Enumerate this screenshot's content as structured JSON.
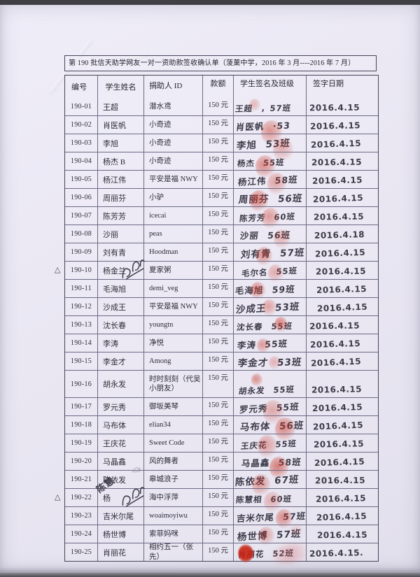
{
  "document": {
    "title": "第 190 批信天助学网友一对一资助款签收确认单（蔆菓中学，2016 年 3 月----2016 年 7 月）",
    "columns": [
      "编号",
      "学生姓名",
      "捐助人 ID",
      "款额",
      "学生签名及班级",
      "签字日期"
    ],
    "margin_symbol": "△",
    "note_text": "陈慧",
    "colors": {
      "paper": "#eae7f3",
      "ink": "#3d3b49",
      "fingerprint_red": "#cb3929",
      "printed": "#2c2c38"
    },
    "rows": [
      {
        "id": "190-01",
        "name": "王超",
        "donor": "潜水鸢",
        "amount": "150 元",
        "sign": "王超 ，57班",
        "date": "2016.4.15"
      },
      {
        "id": "190-02",
        "name": "肖医帆",
        "donor": "小奇迹",
        "amount": "150 元",
        "sign": "肖医帆 ·53",
        "date": "2016.4.15"
      },
      {
        "id": "190-03",
        "name": "李旭",
        "donor": "小奇迹",
        "amount": "150 元",
        "sign": "李旭 53班",
        "date": "2016.4.15"
      },
      {
        "id": "190-04",
        "name": "杨杰 B",
        "donor": "小奇迹",
        "amount": "150 元",
        "sign": "杨杰 55班",
        "date": "2016.4.15"
      },
      {
        "id": "190-05",
        "name": "杨江伟",
        "donor": "平安是福 NWY",
        "amount": "150 元",
        "sign": "杨江伟 58班",
        "date": "2016.4.15"
      },
      {
        "id": "190-06",
        "name": "周丽芬",
        "donor": "小驴",
        "amount": "150 元",
        "sign": "周丽芬 56班",
        "date": "2016.4.15"
      },
      {
        "id": "190-07",
        "name": "陈芳芳",
        "donor": "icecai",
        "amount": "150 元",
        "sign": "陈芳芳 60班",
        "date": "2016.4.15"
      },
      {
        "id": "190-08",
        "name": "沙丽",
        "donor": "peas",
        "amount": "150 元",
        "sign": "沙丽 56班",
        "date": "2016.4.18"
      },
      {
        "id": "190-09",
        "name": "刘有青",
        "donor": "Hoodman",
        "amount": "150 元",
        "sign": "刘有青 57班",
        "date": "2016.4.15"
      },
      {
        "id": "190-10",
        "name": "杨金兰",
        "donor": "夏家粥",
        "amount": "150 元",
        "sign": "毛尔名 55班",
        "date": "2016.4.15",
        "triangle": true,
        "scribble": true
      },
      {
        "id": "190-11",
        "name": "毛海旭",
        "donor": "demi_veg",
        "amount": "150 元",
        "sign": "毛海旭 59班",
        "date": "2016.4.15"
      },
      {
        "id": "190-12",
        "name": "沙成王",
        "donor": "平安是福 NWY",
        "amount": "150 元",
        "sign": "沙成王 53班",
        "date": "2016.4.15"
      },
      {
        "id": "190-13",
        "name": "沈长春",
        "donor": "youngtn",
        "amount": "150 元",
        "sign": "沈长春 55班",
        "date": "2016.4.15"
      },
      {
        "id": "190-14",
        "name": "李涛",
        "donor": "净悦",
        "amount": "150 元",
        "sign": "李涛 55班",
        "date": "2016.4.15"
      },
      {
        "id": "190-15",
        "name": "李金才",
        "donor": "Among",
        "amount": "150 元",
        "sign": "李金才 53班",
        "date": "2016.4.15"
      },
      {
        "id": "190-16",
        "name": "胡永发",
        "donor": "时时刻刻（代吴小朋友）",
        "amount": "150 元",
        "sign": "胡永发 55班",
        "date": "2016.4.15",
        "tall": true
      },
      {
        "id": "190-17",
        "name": "罗元秀",
        "donor": "御坂美琴",
        "amount": "150 元",
        "sign": "罗元秀 55班",
        "date": "2016.4.15"
      },
      {
        "id": "190-18",
        "name": "马布体",
        "donor": "elian34",
        "amount": "150 元",
        "sign": "马布体 56班",
        "date": "2016.4.15"
      },
      {
        "id": "190-19",
        "name": "王庆花",
        "donor": "Sweet Code",
        "amount": "150 元",
        "sign": "王庆花 55班",
        "date": "2016.4.15"
      },
      {
        "id": "190-20",
        "name": "马晶鑫",
        "donor": "风的舞者",
        "amount": "150 元",
        "sign": "马晶鑫 58班",
        "date": "2016.4.15"
      },
      {
        "id": "190-21",
        "name": "陈依发",
        "donor": "皋城浪子",
        "amount": "150 元",
        "sign": "陈依发 67班",
        "date": "2016.4.15",
        "pencil": true,
        "note": true
      },
      {
        "id": "190-22",
        "name": "杨",
        "donor": "海中浮萍",
        "amount": "150 元",
        "sign": "陈慧相 60班",
        "date": "2016.4.15",
        "triangle": true,
        "scribble": true
      },
      {
        "id": "190-23",
        "name": "吉米尔尾",
        "donor": "woaimoyiwu",
        "amount": "150 元",
        "sign": "吉米尔尾 57班",
        "date": "2016.4.15"
      },
      {
        "id": "190-24",
        "name": "杨世博",
        "donor": "索菲妈咪",
        "amount": "150 元",
        "sign": "杨世博 57班",
        "date": "2016.4.15"
      },
      {
        "id": "190-25",
        "name": "肖丽花",
        "donor": "相约五一（张先）",
        "amount": "150 元",
        "sign": "肖丽花 52班",
        "date": "2016.4.15.",
        "solid": true
      }
    ]
  }
}
